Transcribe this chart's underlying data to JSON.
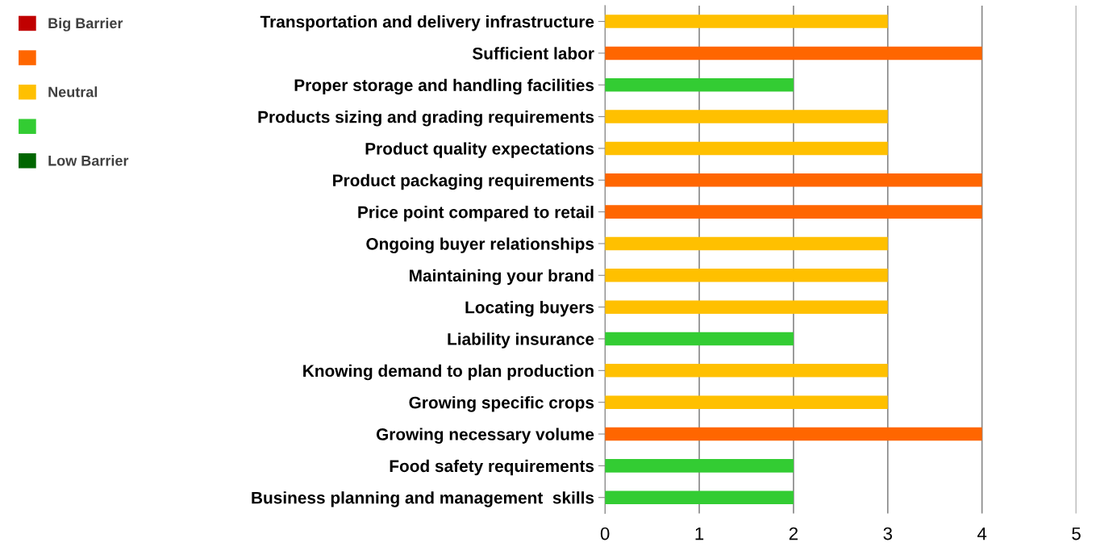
{
  "chart_data": {
    "type": "bar",
    "orientation": "horizontal",
    "categories": [
      "Transportation and delivery infrastructure",
      "Sufficient labor",
      "Proper storage and handling facilities",
      "Products sizing and grading requirements",
      "Product quality expectations",
      "Product packaging requirements",
      "Price point compared to retail",
      "Ongoing buyer relationships",
      "Maintaining your brand",
      "Locating buyers",
      "Liability insurance",
      "Knowing demand to plan production",
      "Growing specific crops",
      "Growing necessary volume",
      "Food safety requirements",
      "Business planning and management  skills"
    ],
    "series": [
      {
        "name": "Big Barrier",
        "color": "#c00000",
        "values": [
          null,
          null,
          null,
          null,
          null,
          null,
          null,
          null,
          null,
          null,
          null,
          null,
          null,
          null,
          null,
          null
        ]
      },
      {
        "color": "#ff6600",
        "values": [
          null,
          4,
          null,
          null,
          null,
          4,
          4,
          null,
          null,
          null,
          null,
          null,
          null,
          4,
          null,
          null
        ]
      },
      {
        "name": "Neutral",
        "color": "#ffc000",
        "values": [
          3,
          null,
          null,
          3,
          3,
          null,
          null,
          3,
          3,
          3,
          null,
          3,
          3,
          null,
          null,
          null
        ]
      },
      {
        "color": "#33cc33",
        "values": [
          null,
          null,
          2,
          null,
          null,
          null,
          null,
          null,
          null,
          null,
          2,
          null,
          null,
          null,
          2,
          2
        ]
      },
      {
        "name": "Low Barrier",
        "color": "#006600",
        "values": [
          null,
          null,
          null,
          null,
          null,
          null,
          null,
          null,
          null,
          null,
          null,
          null,
          null,
          null,
          null,
          null
        ]
      }
    ],
    "xlim": [
      0,
      5
    ],
    "xticks": [
      0,
      1,
      2,
      3,
      4,
      5
    ],
    "grid": "x",
    "legend": "top left"
  }
}
